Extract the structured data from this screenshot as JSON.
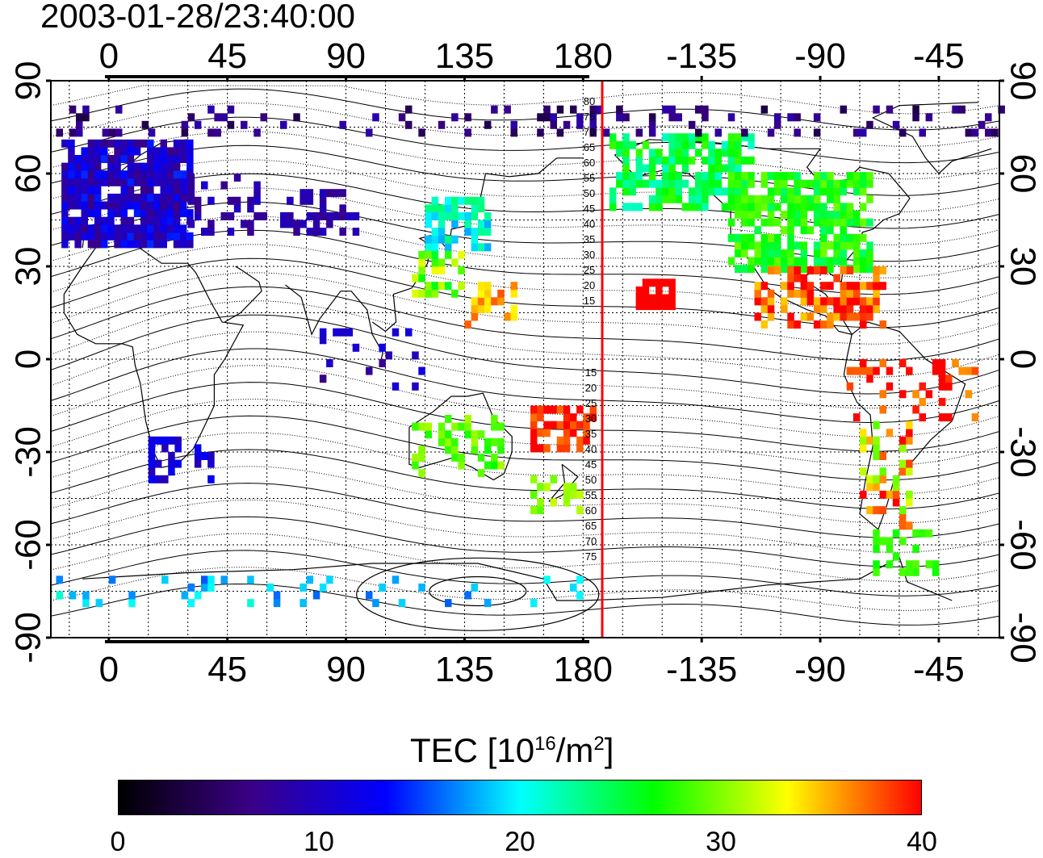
{
  "timestamp": "2003-01-28/23:40:00",
  "map": {
    "type": "global TEC map",
    "top_lon_ticks": [
      "0",
      "45",
      "90",
      "135",
      "180",
      "-135",
      "-90",
      "-45"
    ],
    "bottom_lon_ticks": [
      "0",
      "45",
      "90",
      "135",
      "180",
      "-135",
      "-90",
      "-45"
    ],
    "lat_ticks": [
      "90",
      "60",
      "30",
      "0",
      "-30",
      "-60",
      "-90"
    ],
    "terminator_line_color": "#ff0000",
    "mlat_labels_north": [
      "80",
      "75",
      "70",
      "65",
      "60",
      "55",
      "50",
      "45",
      "40",
      "35",
      "30",
      "25",
      "20",
      "15"
    ],
    "mlat_labels_south": [
      "15",
      "20",
      "25",
      "30",
      "35",
      "40",
      "45",
      "50",
      "55",
      "60",
      "65",
      "70",
      "75"
    ]
  },
  "colorbar": {
    "title_main": "TEC  [10",
    "title_exp1": "16",
    "title_mid": "/m",
    "title_exp2": "2",
    "title_end": "]",
    "ticks": [
      "0",
      "10",
      "20",
      "30",
      "40"
    ],
    "range": [
      0,
      40
    ],
    "colors": [
      "#000000",
      "#3a0088",
      "#0000ff",
      "#00ffff",
      "#00ff00",
      "#ffff00",
      "#ff0000"
    ]
  }
}
